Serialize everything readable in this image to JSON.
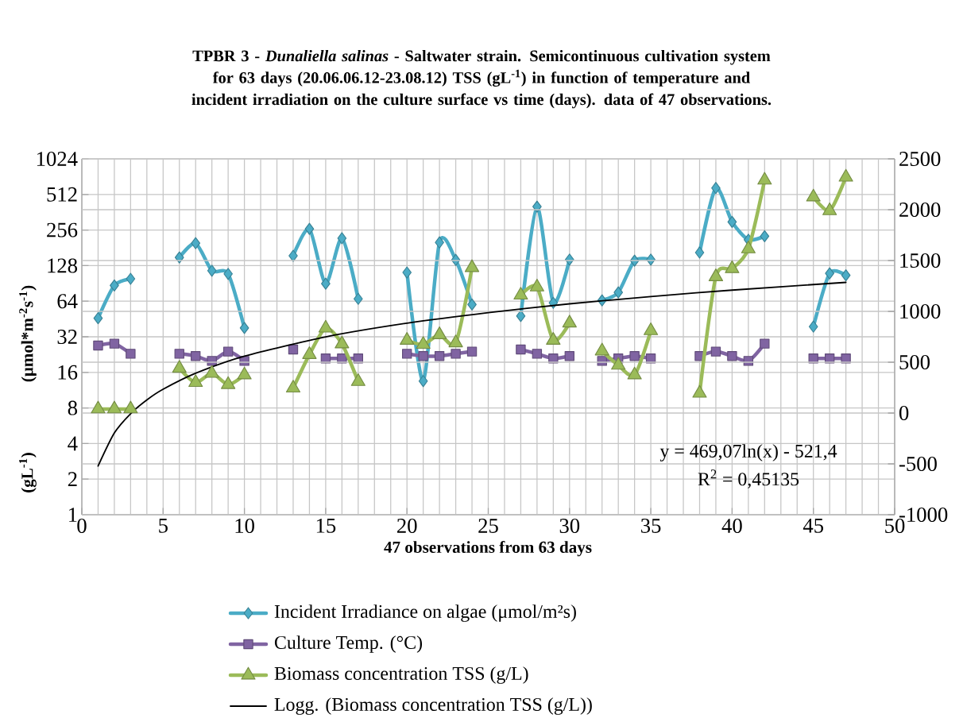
{
  "chart_data": {
    "type": "line",
    "title": "TPBR 3 - *Dunaliella salinas* - Saltwater strain. Semicontinuous cultivation system for 63 days (20.06.06.12-23.08.12) TSS (gL$^{-1}$) in function of temperature and incident irradiation on the culture surface vs time (days). data of 47 observations.",
    "xlabel": "47 observations from 63 days",
    "ylabel": "(μmol*m$^{-2}$s$^{-1}$)",
    "annotations": [
      "(gL$^{-1}$)",
      "y = 469,07ln(x) - 521,4",
      "R$^{2}$ = 0,45135"
    ],
    "x": [
      1,
      2,
      3,
      4,
      5,
      6,
      7,
      8,
      9,
      10,
      11,
      12,
      13,
      14,
      15,
      16,
      17,
      18,
      19,
      20,
      21,
      22,
      23,
      24,
      25,
      26,
      27,
      28,
      29,
      30,
      31,
      32,
      33,
      34,
      35,
      36,
      37,
      38,
      39,
      40,
      41,
      42,
      43,
      44,
      45,
      46,
      47
    ],
    "xlim": [
      0,
      50
    ],
    "xticks": [
      0,
      5,
      10,
      15,
      20,
      25,
      30,
      35,
      40,
      45,
      50
    ],
    "ylim": [
      1,
      1024
    ],
    "yticks": [
      1,
      2,
      4,
      8,
      16,
      32,
      64,
      128,
      256,
      512,
      1024
    ],
    "log": "y",
    "y2lim": [
      -1000,
      2500
    ],
    "y2ticks": [
      -1000,
      -500,
      0,
      500,
      1000,
      1500,
      2000,
      2500
    ],
    "grid": true,
    "legend": "bottom",
    "series": [
      {
        "name": "Incident Irradiance on algae (μmol/m²s)",
        "color": "#4bacc6",
        "marker": "diamond",
        "values": [
          46,
          87,
          99,
          null,
          null,
          150,
          198,
          116,
          109,
          38,
          null,
          null,
          155,
          262,
          90,
          218,
          67,
          null,
          null,
          112,
          13.5,
          201,
          143,
          60,
          null,
          null,
          48,
          404,
          62,
          144,
          null,
          65,
          76,
          141,
          144,
          null,
          null,
          165,
          580,
          300,
          212,
          227,
          null,
          null,
          39,
          110,
          106
        ]
      },
      {
        "name": "Culture Temp. (°C)",
        "color": "#8064a2",
        "marker": "square",
        "values": [
          27,
          28,
          23,
          null,
          null,
          23,
          22,
          20,
          24,
          20,
          null,
          null,
          25,
          null,
          21,
          21,
          21,
          null,
          null,
          23,
          22,
          22,
          23,
          24,
          null,
          null,
          25,
          23,
          21,
          22,
          null,
          20,
          21,
          22,
          21,
          null,
          null,
          22,
          24,
          22,
          20,
          28,
          null,
          null,
          21,
          21,
          21
        ]
      },
      {
        "name": "Biomass concentration TSS (g/L)",
        "color": "#9bbb59",
        "marker": "triangle",
        "axis": "y2",
        "values": [
          40,
          40,
          40,
          null,
          null,
          440,
          300,
          390,
          280,
          375,
          null,
          null,
          245,
          575,
          835,
          680,
          310,
          null,
          null,
          715,
          675,
          770,
          690,
          1430,
          null,
          null,
          1160,
          1240,
          715,
          885,
          null,
          610,
          470,
          375,
          810,
          null,
          null,
          195,
          1340,
          1420,
          1615,
          2290,
          null,
          null,
          2125,
          1990,
          2320
        ]
      },
      {
        "name": "Logg. (Biomass concentration TSS (g/L))",
        "color": "#000000",
        "marker": "none",
        "axis": "y2",
        "x": [
          1,
          2,
          3,
          4,
          5,
          7,
          10,
          15,
          20,
          25,
          30,
          35,
          40,
          47
        ],
        "values": [
          -521,
          -196,
          -6,
          129,
          234,
          391,
          559,
          749,
          884,
          988,
          1074,
          1146,
          1209,
          1285
        ]
      }
    ]
  }
}
